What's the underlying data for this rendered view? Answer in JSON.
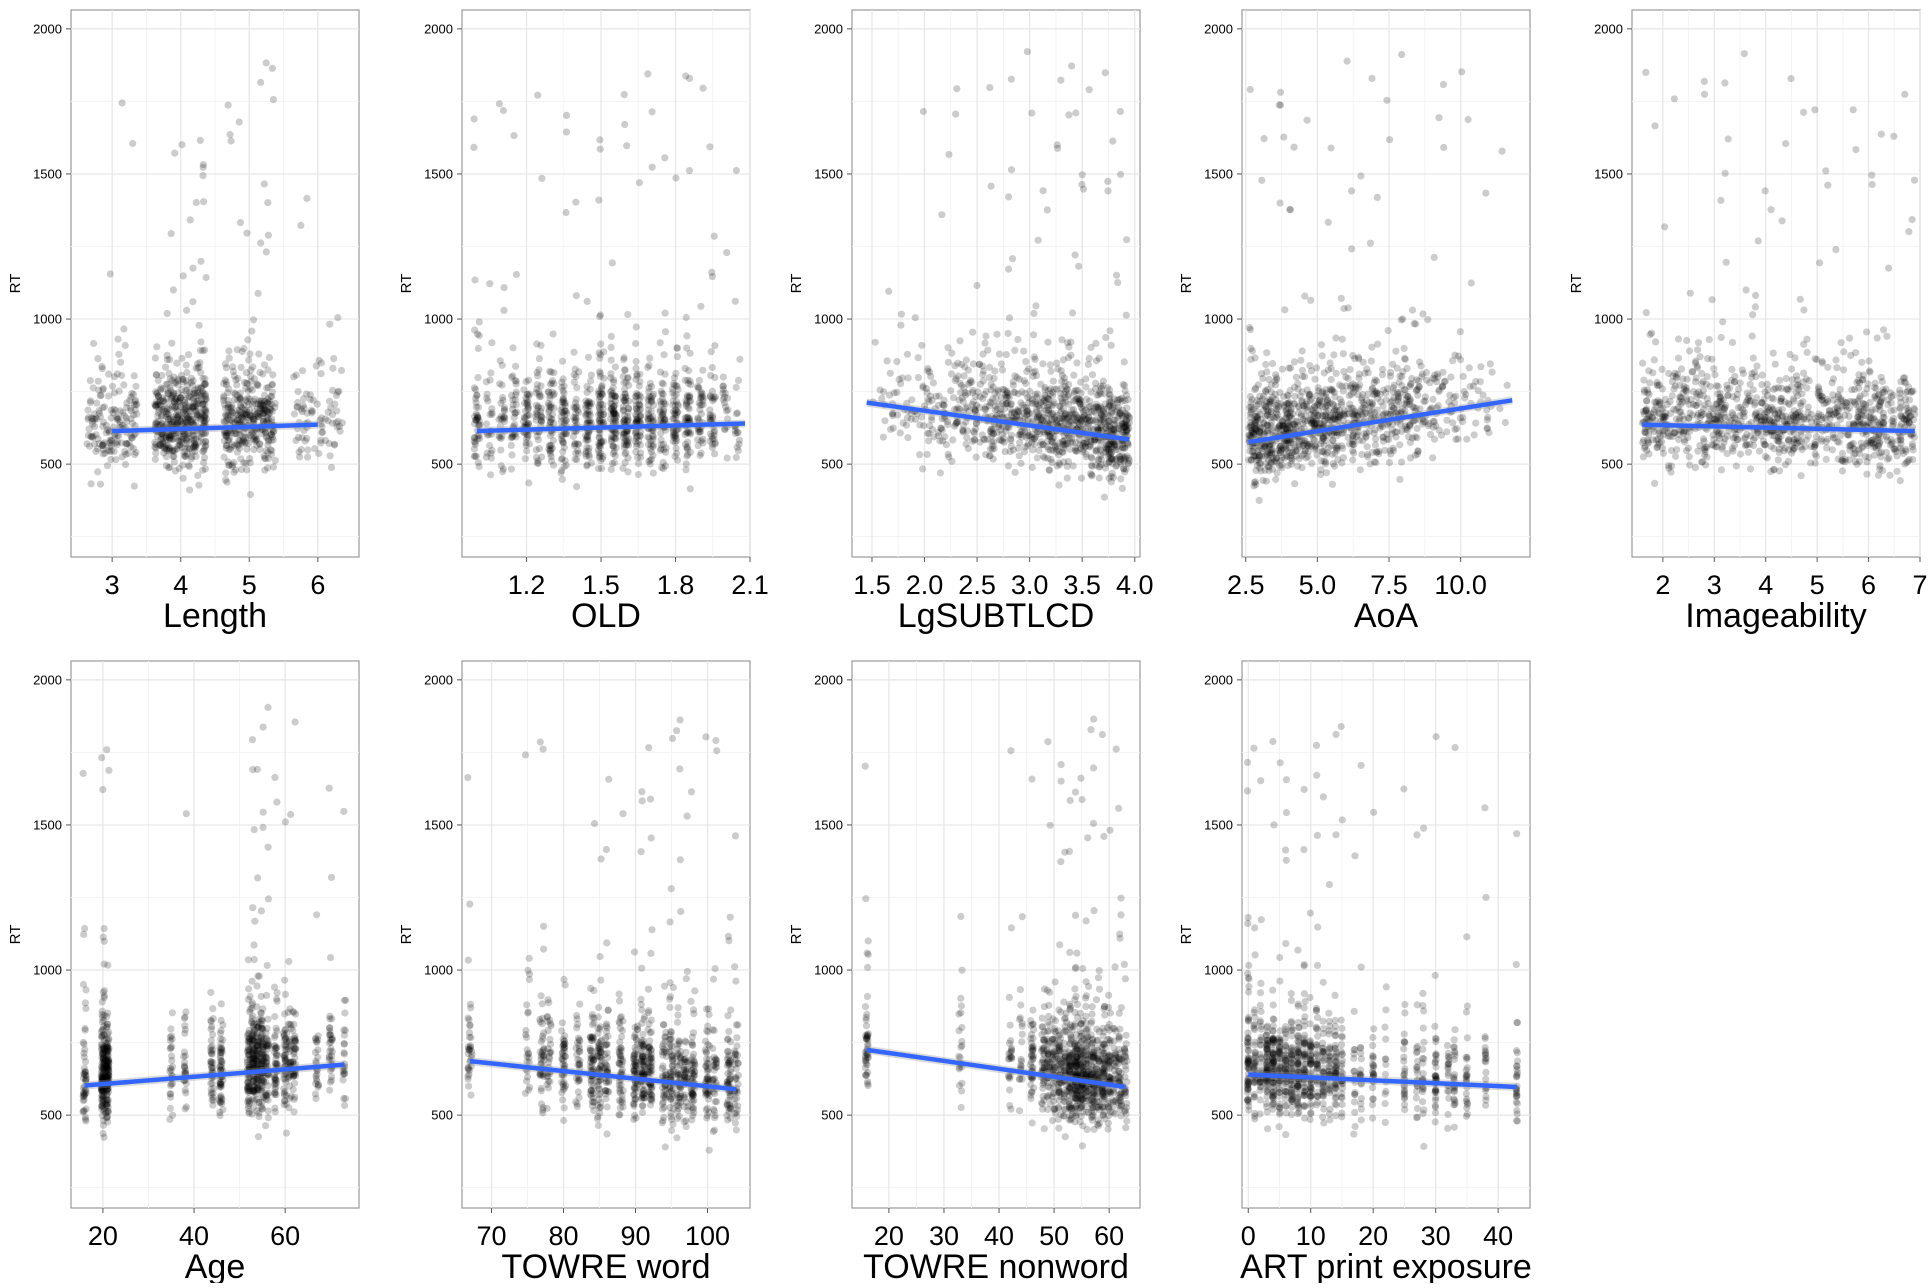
{
  "chart_data": [
    {
      "type": "scatter",
      "xlabel": "Length",
      "ylabel": "RT",
      "xlim": [
        2.4,
        6.6
      ],
      "ylim": [
        180,
        2065
      ],
      "xticks": [
        3,
        4,
        5,
        6
      ],
      "xtick_labels": [
        "3",
        "4",
        "5",
        "6"
      ],
      "yticks": [
        500,
        1000,
        1500,
        2000
      ],
      "ytick_labels": [
        "500",
        "1000",
        "1500",
        "2000"
      ],
      "x_levels": [
        3,
        4,
        5,
        6
      ],
      "level_weights": [
        0.13,
        0.42,
        0.37,
        0.08
      ],
      "jitter": 0.38,
      "fit_line": {
        "x": [
          3,
          6
        ],
        "y": [
          614,
          636
        ]
      },
      "line_color": "#3366FF",
      "point_color": "#000000",
      "grid": true
    },
    {
      "type": "scatter",
      "xlabel": "OLD",
      "ylabel": "RT",
      "xlim": [
        0.94,
        2.1
      ],
      "ylim": [
        180,
        2065
      ],
      "xticks": [
        1.2,
        1.5,
        1.8,
        2.1
      ],
      "xtick_labels": [
        "1.2",
        "1.5",
        "1.8",
        "2.1"
      ],
      "yticks": [
        500,
        1000,
        1500,
        2000
      ],
      "ytick_labels": [
        "500",
        "1000",
        "1500",
        "2000"
      ],
      "x_levels": [
        1.0,
        1.05,
        1.1,
        1.15,
        1.2,
        1.25,
        1.3,
        1.35,
        1.4,
        1.45,
        1.5,
        1.55,
        1.6,
        1.65,
        1.7,
        1.75,
        1.8,
        1.85,
        1.9,
        1.95,
        2.0,
        2.05
      ],
      "level_weights": [
        3,
        3,
        3,
        4,
        4,
        4,
        5,
        5,
        5,
        5,
        6,
        6,
        6,
        6,
        6,
        6,
        5,
        5,
        4,
        3,
        2,
        2
      ],
      "jitter": 0.012,
      "fit_line": {
        "x": [
          1.0,
          2.08
        ],
        "y": [
          614,
          640
        ]
      },
      "line_color": "#3366FF",
      "point_color": "#000000",
      "grid": true
    },
    {
      "type": "scatter",
      "xlabel": "LgSUBTLCD",
      "ylabel": "RT",
      "xlim": [
        1.31,
        4.05
      ],
      "ylim": [
        180,
        2065
      ],
      "xticks": [
        1.5,
        2.0,
        2.5,
        3.0,
        3.5,
        4.0
      ],
      "xtick_labels": [
        "1.5",
        "2.0",
        "2.5",
        "3.0",
        "3.5",
        "4.0"
      ],
      "yticks": [
        500,
        1000,
        1500,
        2000
      ],
      "ytick_labels": [
        "500",
        "1000",
        "1500",
        "2000"
      ],
      "x_range": [
        1.45,
        3.95
      ],
      "density_skew": "high",
      "fit_line": {
        "x": [
          1.45,
          3.95
        ],
        "y": [
          712,
          585
        ]
      },
      "line_color": "#3366FF",
      "point_color": "#000000",
      "grid": true
    },
    {
      "type": "scatter",
      "xlabel": "AoA",
      "ylabel": "RT",
      "xlim": [
        2.37,
        12.42
      ],
      "ylim": [
        180,
        2065
      ],
      "xticks": [
        2.5,
        5.0,
        7.5,
        10.0
      ],
      "xtick_labels": [
        "2.5",
        "5.0",
        "7.5",
        "10.0"
      ],
      "yticks": [
        500,
        1000,
        1500,
        2000
      ],
      "ytick_labels": [
        "500",
        "1000",
        "1500",
        "2000"
      ],
      "x_range": [
        2.6,
        11.8
      ],
      "density_skew": "low",
      "fit_line": {
        "x": [
          2.6,
          11.8
        ],
        "y": [
          576,
          720
        ]
      },
      "line_color": "#3366FF",
      "point_color": "#000000",
      "grid": true
    },
    {
      "type": "scatter",
      "xlabel": "Imageability",
      "ylabel": "RT",
      "xlim": [
        1.4,
        7.0
      ],
      "ylim": [
        180,
        2065
      ],
      "xticks": [
        2,
        3,
        4,
        5,
        6,
        7
      ],
      "xtick_labels": [
        "2",
        "3",
        "4",
        "5",
        "6",
        "7"
      ],
      "yticks": [
        500,
        1000,
        1500,
        2000
      ],
      "ytick_labels": [
        "500",
        "1000",
        "1500",
        "2000"
      ],
      "x_range": [
        1.6,
        6.9
      ],
      "density_skew": "none",
      "fit_line": {
        "x": [
          1.6,
          6.9
        ],
        "y": [
          636,
          614
        ]
      },
      "line_color": "#3366FF",
      "point_color": "#000000",
      "grid": true
    },
    {
      "type": "scatter",
      "xlabel": "Age",
      "ylabel": "RT",
      "xlim": [
        13,
        76.2
      ],
      "ylim": [
        180,
        2065
      ],
      "xticks": [
        20,
        40,
        60
      ],
      "xtick_labels": [
        "20",
        "40",
        "60"
      ],
      "yticks": [
        500,
        1000,
        1500,
        2000
      ],
      "ytick_labels": [
        "500",
        "1000",
        "1500",
        "2000"
      ],
      "x_levels": [
        16,
        20,
        21,
        35,
        38,
        44,
        46,
        52,
        53,
        54,
        55,
        56,
        58,
        60,
        61,
        62,
        67,
        70,
        73
      ],
      "level_weights": [
        3,
        12,
        10,
        2,
        2,
        3,
        4,
        5,
        6,
        6,
        5,
        5,
        4,
        4,
        3,
        3,
        2,
        3,
        2
      ],
      "jitter": 0.35,
      "fit_line": {
        "x": [
          16,
          73
        ],
        "y": [
          602,
          674
        ]
      },
      "line_color": "#3366FF",
      "point_color": "#000000",
      "grid": true
    },
    {
      "type": "scatter",
      "xlabel": "TOWRE word",
      "ylabel": "RT",
      "xlim": [
        65.9,
        105.9
      ],
      "ylim": [
        180,
        2065
      ],
      "xticks": [
        70,
        80,
        90,
        100
      ],
      "xtick_labels": [
        "70",
        "80",
        "90",
        "100"
      ],
      "yticks": [
        500,
        1000,
        1500,
        2000
      ],
      "ytick_labels": [
        "500",
        "1000",
        "1500",
        "2000"
      ],
      "x_levels": [
        67,
        75,
        77,
        78,
        80,
        82,
        84,
        85,
        86,
        88,
        90,
        91,
        92,
        94,
        95,
        96,
        97,
        98,
        100,
        101,
        103,
        104
      ],
      "level_weights": [
        2,
        2,
        3,
        3,
        3,
        3,
        4,
        4,
        3,
        4,
        4,
        5,
        5,
        4,
        5,
        4,
        4,
        4,
        4,
        3,
        4,
        3
      ],
      "jitter": 0.3,
      "fit_line": {
        "x": [
          67,
          104
        ],
        "y": [
          686,
          589
        ]
      },
      "line_color": "#3366FF",
      "point_color": "#000000",
      "grid": true
    },
    {
      "type": "scatter",
      "xlabel": "TOWRE nonword",
      "ylabel": "RT",
      "xlim": [
        13.3,
        65.6
      ],
      "ylim": [
        180,
        2065
      ],
      "xticks": [
        20,
        30,
        40,
        50,
        60
      ],
      "xtick_labels": [
        "20",
        "30",
        "40",
        "50",
        "60"
      ],
      "yticks": [
        500,
        1000,
        1500,
        2000
      ],
      "ytick_labels": [
        "500",
        "1000",
        "1500",
        "2000"
      ],
      "x_levels": [
        16,
        33,
        42,
        44,
        46,
        48,
        49,
        50,
        51,
        52,
        53,
        54,
        55,
        56,
        57,
        58,
        59,
        60,
        61,
        62,
        63
      ],
      "level_weights": [
        3,
        2,
        2,
        2,
        3,
        3,
        3,
        4,
        4,
        5,
        5,
        6,
        6,
        5,
        5,
        5,
        4,
        4,
        3,
        3,
        3
      ],
      "jitter": 0.3,
      "fit_line": {
        "x": [
          16,
          63
        ],
        "y": [
          725,
          597
        ]
      },
      "line_color": "#3366FF",
      "point_color": "#000000",
      "grid": true
    },
    {
      "type": "scatter",
      "xlabel": "ART print exposure",
      "ylabel": "RT",
      "xlim": [
        -1,
        45.1
      ],
      "ylim": [
        180,
        2065
      ],
      "xticks": [
        0,
        10,
        20,
        30,
        40
      ],
      "xtick_labels": [
        "0",
        "10",
        "20",
        "30",
        "40"
      ],
      "yticks": [
        500,
        1000,
        1500,
        2000
      ],
      "ytick_labels": [
        "500",
        "1000",
        "1500",
        "2000"
      ],
      "x_levels": [
        0,
        1,
        2,
        3,
        4,
        5,
        6,
        7,
        8,
        9,
        10,
        11,
        12,
        13,
        14,
        15,
        17,
        18,
        20,
        22,
        25,
        27,
        28,
        30,
        32,
        33,
        35,
        38,
        43
      ],
      "level_weights": [
        5,
        5,
        5,
        6,
        6,
        6,
        6,
        5,
        5,
        5,
        5,
        4,
        4,
        4,
        4,
        3,
        3,
        3,
        3,
        2,
        3,
        2,
        3,
        3,
        2,
        3,
        2,
        3,
        3
      ],
      "jitter": 0.12,
      "fit_line": {
        "x": [
          0,
          43
        ],
        "y": [
          640,
          597
        ]
      },
      "line_color": "#3366FF",
      "point_color": "#000000",
      "grid": true
    }
  ]
}
